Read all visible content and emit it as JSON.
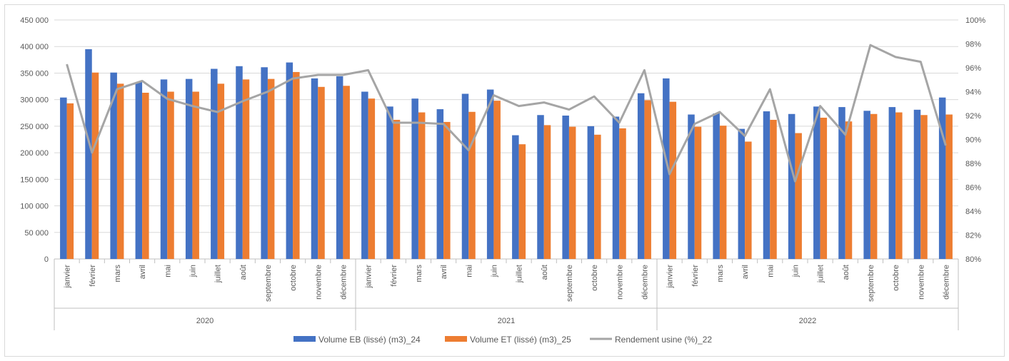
{
  "chart_data": {
    "type": "bar",
    "title": "",
    "xlabel": "",
    "ylabel": "",
    "ylim": [
      0,
      450000
    ],
    "y2lim": [
      80,
      100
    ],
    "y_ticks": [
      "0",
      "50 000",
      "100 000",
      "150 000",
      "200 000",
      "250 000",
      "300 000",
      "350 000",
      "400 000",
      "450 000"
    ],
    "y2_ticks": [
      "80%",
      "82%",
      "84%",
      "86%",
      "88%",
      "90%",
      "92%",
      "94%",
      "96%",
      "98%",
      "100%"
    ],
    "grid": true,
    "legend_position": "bottom",
    "years": [
      {
        "label": "2020",
        "months": [
          "janvier",
          "février",
          "mars",
          "avril",
          "mai",
          "juin",
          "juillet",
          "août",
          "septembre",
          "octobre",
          "novembre",
          "décembre"
        ]
      },
      {
        "label": "2021",
        "months": [
          "janvier",
          "février",
          "mars",
          "avril",
          "mai",
          "juin",
          "juillet",
          "août",
          "septembre",
          "octobre",
          "novembre",
          "décembre"
        ]
      },
      {
        "label": "2022",
        "months": [
          "janvier",
          "février",
          "mars",
          "avril",
          "mai",
          "juin",
          "juillet",
          "août",
          "septembre",
          "octobre",
          "novembre",
          "décembre"
        ]
      }
    ],
    "series": [
      {
        "name": "Volume EB (lissé) (m3)_24",
        "kind": "bar",
        "axis": "left",
        "color": "#4472c4",
        "values": [
          304000,
          395000,
          351000,
          333000,
          338000,
          339000,
          358000,
          363000,
          361000,
          370000,
          340000,
          344000,
          315000,
          287000,
          302000,
          282000,
          311000,
          319000,
          233000,
          271000,
          270000,
          250000,
          268000,
          312000,
          340000,
          272000,
          274000,
          245000,
          278000,
          273000,
          287000,
          286000,
          279000,
          286000,
          281000,
          304000
        ]
      },
      {
        "name": "Volume ET (lissé) (m3)_25",
        "kind": "bar",
        "axis": "left",
        "color": "#ed7d31",
        "values": [
          293000,
          351000,
          330000,
          313000,
          315000,
          315000,
          330000,
          338000,
          339000,
          352000,
          324000,
          326000,
          302000,
          262000,
          276000,
          258000,
          277000,
          298000,
          216000,
          252000,
          249000,
          234000,
          246000,
          299000,
          296000,
          249000,
          251000,
          221000,
          262000,
          237000,
          266000,
          259000,
          273000,
          276000,
          271000,
          272000
        ]
      },
      {
        "name": "Rendement usine (%)_22",
        "kind": "line",
        "axis": "right",
        "color": "#a5a5a5",
        "values": [
          96.3,
          88.9,
          94.2,
          94.9,
          93.4,
          92.8,
          92.3,
          93.2,
          94.0,
          95.1,
          95.4,
          95.4,
          95.8,
          91.4,
          91.4,
          91.3,
          89.1,
          93.7,
          92.8,
          93.1,
          92.5,
          93.6,
          91.4,
          95.8,
          87.1,
          91.3,
          92.3,
          90.3,
          94.2,
          86.5,
          92.8,
          90.4,
          97.9,
          96.9,
          96.5,
          89.5
        ]
      }
    ]
  }
}
